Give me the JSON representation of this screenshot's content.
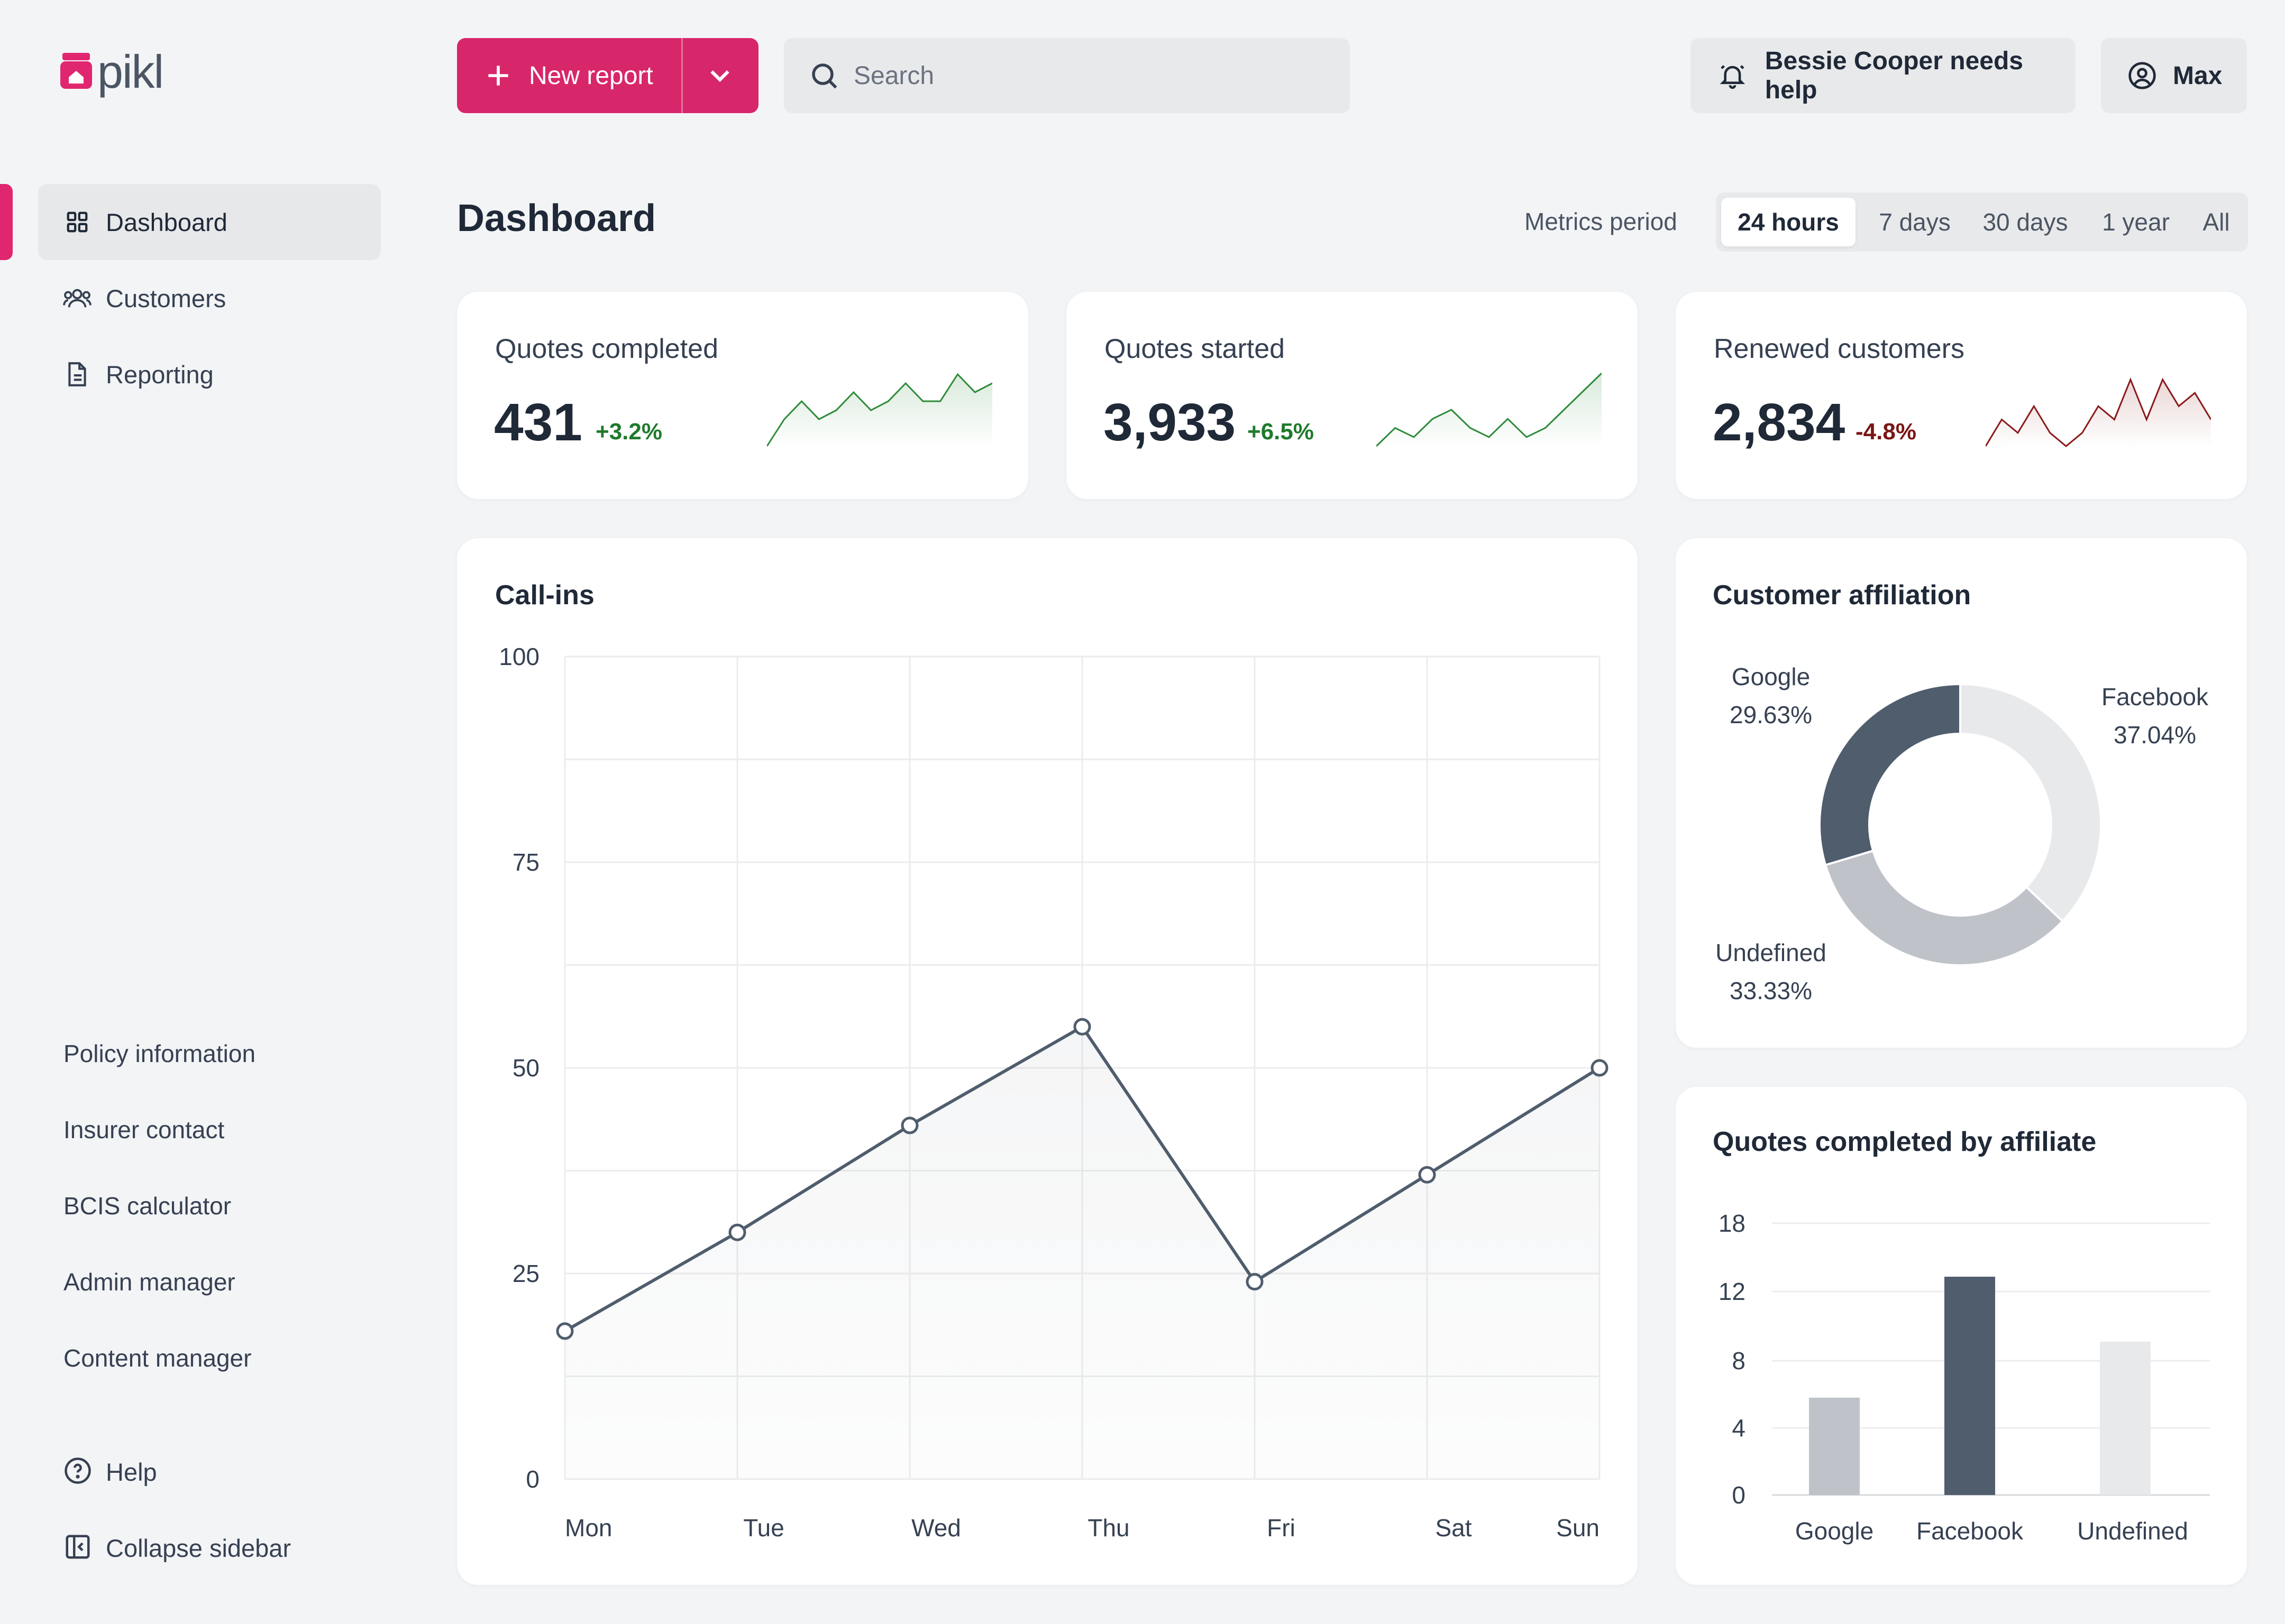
{
  "app": {
    "logo_text": "pikl"
  },
  "sidebar": {
    "nav": [
      {
        "label": "Dashboard",
        "icon": "grid-icon",
        "active": true
      },
      {
        "label": "Customers",
        "icon": "users-icon",
        "active": false
      },
      {
        "label": "Reporting",
        "icon": "document-icon",
        "active": false
      }
    ],
    "links": [
      "Policy information",
      "Insurer contact",
      "BCIS calculator",
      "Admin manager",
      "Content manager"
    ],
    "help_label": "Help",
    "collapse_label": "Collapse sidebar"
  },
  "topbar": {
    "new_report_label": "New report",
    "search_placeholder": "Search",
    "notification_label": "Bessie Cooper needs help",
    "user_label": "Max"
  },
  "page": {
    "title": "Dashboard",
    "metrics_period_label": "Metrics period",
    "period_options": [
      "24 hours",
      "7 days",
      "30 days",
      "1 year",
      "All"
    ],
    "selected_period": "24 hours"
  },
  "kpis": [
    {
      "title": "Quotes completed",
      "value": "431",
      "delta": "+3.2%",
      "trend": "positive",
      "color": "#2e8b3a",
      "spark": [
        0,
        3,
        5,
        3,
        4,
        6,
        4,
        5,
        7,
        5,
        5,
        8,
        6,
        7
      ]
    },
    {
      "title": "Quotes started",
      "value": "3,933",
      "delta": "+6.5%",
      "trend": "positive",
      "color": "#2e8b3a",
      "spark": [
        0,
        2,
        1,
        3,
        4,
        2,
        1,
        3,
        1,
        2,
        4,
        6,
        8
      ]
    },
    {
      "title": "Renewed customers",
      "value": "2,834",
      "delta": "-4.8%",
      "trend": "negative",
      "color": "#8b1a1a",
      "spark": [
        0,
        2,
        1,
        3,
        1,
        0,
        1,
        3,
        2,
        5,
        2,
        5,
        3,
        4,
        2
      ]
    }
  ],
  "colors": {
    "accent": "#d8266b",
    "dark_series": "#4f5d6d",
    "mid_series": "#bfc3c9",
    "light_series": "#e8e9eb"
  },
  "chart_data": [
    {
      "type": "line",
      "title": "Call-ins",
      "categories": [
        "Mon",
        "Tue",
        "Wed",
        "Thu",
        "Fri",
        "Sat",
        "Sun"
      ],
      "values": [
        18,
        30,
        43,
        55,
        24,
        37,
        50
      ],
      "ylim": [
        0,
        100
      ],
      "yticks": [
        0,
        25,
        50,
        75,
        100
      ],
      "grid": true
    },
    {
      "type": "pie",
      "title": "Customer affiliation",
      "slices": [
        {
          "label": "Facebook",
          "value": 37.04,
          "display": "37.04%",
          "color": "#e8e9eb"
        },
        {
          "label": "Undefined",
          "value": 33.33,
          "display": "33.33%",
          "color": "#bfc3c9"
        },
        {
          "label": "Google",
          "value": 29.63,
          "display": "29.63%",
          "color": "#4f5d6d"
        }
      ]
    },
    {
      "type": "bar",
      "title": "Quotes completed by affiliate",
      "categories": [
        "Google",
        "Facebook",
        "Undefined"
      ],
      "values": [
        5.8,
        13.3,
        9.1
      ],
      "colors": [
        "#bfc3c9",
        "#4f5d6d",
        "#e8e9eb"
      ],
      "ylim": [
        0,
        18
      ],
      "yticks": [
        0,
        4,
        8,
        12,
        18
      ]
    }
  ]
}
